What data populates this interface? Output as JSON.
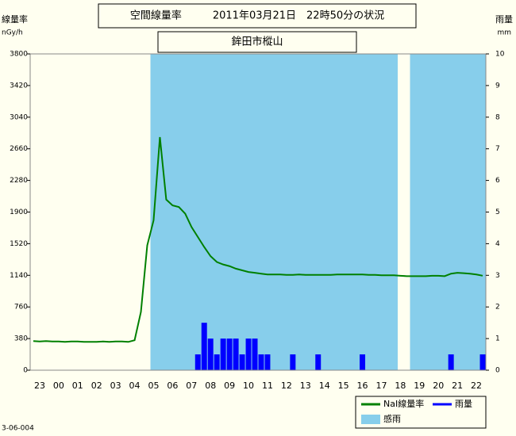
{
  "chart_data": {
    "type": "line",
    "title": "空間線量率　　　2011年03月21日　22時50分の状況",
    "subtitle": "鉾田市樅山",
    "y_label": "線量率",
    "y_unit": "nGy/h",
    "y2_label": "雨量",
    "y2_unit": "mm",
    "footer": "3-06-004",
    "categories": [
      null,
      "23",
      null,
      null,
      "00",
      null,
      null,
      "01",
      null,
      null,
      "02",
      null,
      null,
      "03",
      null,
      null,
      "04",
      null,
      null,
      "05",
      null,
      null,
      "06",
      null,
      null,
      "07",
      null,
      null,
      "08",
      null,
      null,
      "09",
      null,
      null,
      "10",
      null,
      null,
      "11",
      null,
      null,
      "12",
      null,
      null,
      "13",
      null,
      null,
      "14",
      null,
      null,
      "15",
      null,
      null,
      "16",
      null,
      null,
      "17",
      null,
      null,
      "18",
      null,
      null,
      "19",
      null,
      null,
      "20",
      null,
      null,
      "21",
      null,
      null,
      "22",
      null
    ],
    "ylim": [
      0,
      3800
    ],
    "yticks": [
      0,
      380,
      760,
      1140,
      1520,
      1900,
      2280,
      2660,
      3040,
      3420,
      3800
    ],
    "y2lim": [
      0,
      10
    ],
    "y2ticks": [
      0,
      1,
      2,
      3,
      4,
      5,
      6,
      7,
      8,
      9,
      10
    ],
    "series": [
      {
        "name": "NaI線量率",
        "type": "line",
        "color": "#008000",
        "values": [
          350,
          345,
          350,
          345,
          345,
          340,
          345,
          345,
          340,
          340,
          340,
          345,
          340,
          345,
          345,
          340,
          360,
          700,
          1500,
          1800,
          2800,
          2050,
          1980,
          1960,
          1880,
          1720,
          1600,
          1480,
          1370,
          1300,
          1270,
          1250,
          1220,
          1200,
          1180,
          1170,
          1160,
          1150,
          1150,
          1150,
          1145,
          1145,
          1150,
          1145,
          1145,
          1145,
          1145,
          1145,
          1150,
          1150,
          1150,
          1150,
          1150,
          1145,
          1145,
          1140,
          1140,
          1140,
          1135,
          1130,
          1130,
          1130,
          1130,
          1135,
          1135,
          1130,
          1160,
          1170,
          1165,
          1160,
          1150,
          1135
        ]
      },
      {
        "name": "雨量",
        "type": "bar",
        "axis": "y2",
        "color": "#0000ff",
        "values": [
          0,
          0,
          0,
          0,
          0,
          0,
          0,
          0,
          0,
          0,
          0,
          0,
          0,
          0,
          0,
          0,
          0,
          0,
          0,
          0,
          0,
          0,
          0,
          0,
          0,
          0,
          0.5,
          1.5,
          1.0,
          0.5,
          1.0,
          1.0,
          1.0,
          0.5,
          1.0,
          1.0,
          0.5,
          0.5,
          0,
          0,
          0,
          0.5,
          0,
          0,
          0,
          0.5,
          0,
          0,
          0,
          0,
          0,
          0,
          0.5,
          0,
          0,
          0,
          0,
          0,
          0,
          0,
          0,
          0,
          0,
          0,
          0,
          0,
          0.5,
          0,
          0,
          0,
          0,
          0.5
        ]
      },
      {
        "name": "感雨",
        "type": "band",
        "axis": "y2",
        "color": "#87ceeb",
        "values": [
          null,
          null,
          null,
          null,
          null,
          null,
          null,
          null,
          null,
          null,
          null,
          null,
          null,
          null,
          null,
          null,
          null,
          null,
          null,
          1,
          1,
          1,
          1,
          1,
          1,
          1,
          1,
          1,
          1,
          1,
          1,
          1,
          1,
          1,
          1,
          1,
          1,
          1,
          1,
          1,
          1,
          1,
          1,
          1,
          1,
          1,
          1,
          1,
          1,
          1,
          1,
          1,
          1,
          1,
          1,
          1,
          1,
          1,
          null,
          null,
          1,
          1,
          1,
          1,
          1,
          1,
          1,
          1,
          1,
          1,
          1,
          1
        ]
      }
    ]
  }
}
